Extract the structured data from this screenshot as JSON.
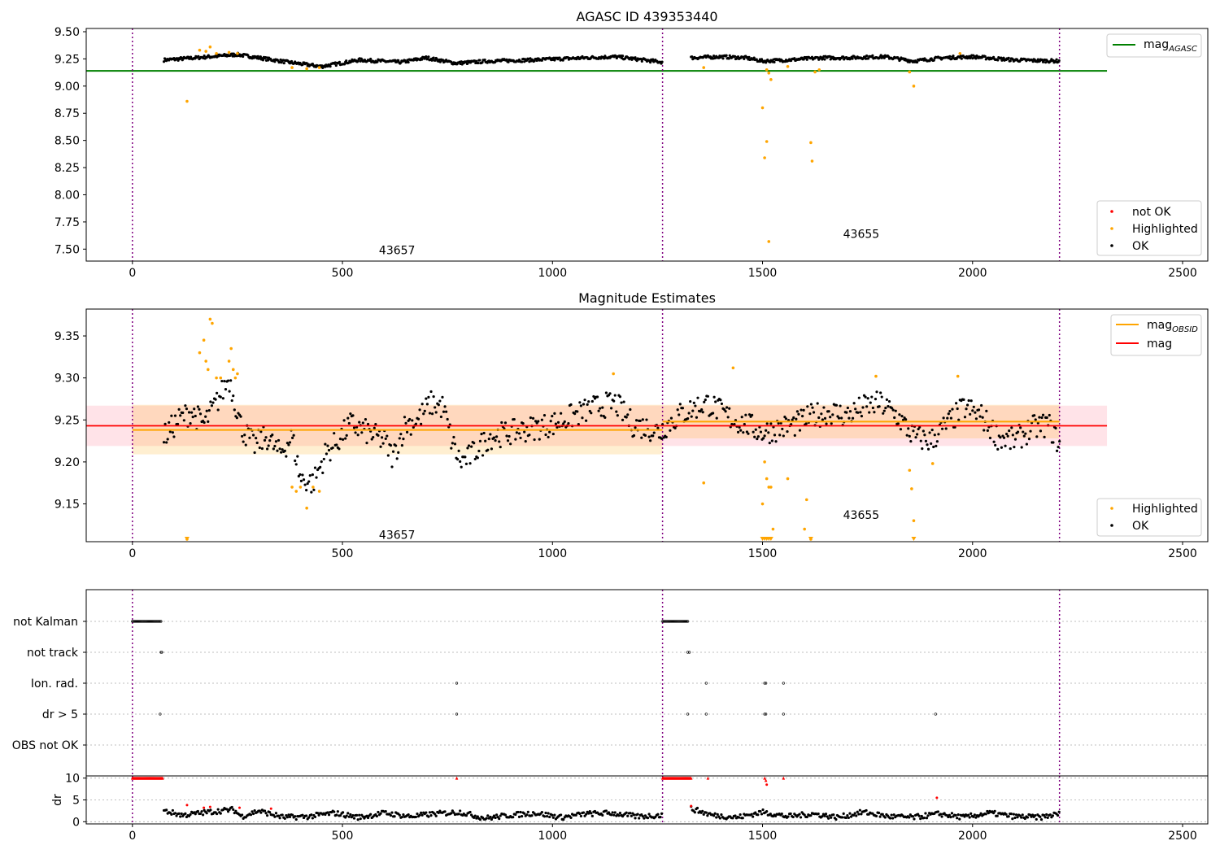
{
  "figure": {
    "xlim": [
      -110,
      2560
    ],
    "xticks": [
      "0",
      "500",
      "1000",
      "1500",
      "2000",
      "2500"
    ],
    "xtick_values": [
      0,
      500,
      1000,
      1500,
      2000,
      2500
    ],
    "obsid_boundaries": [
      0,
      1262,
      2207
    ],
    "colors": {
      "ok": "#000000",
      "highlighted": "#ffa500",
      "not_ok": "#ff0000",
      "agasc_line": "#008000",
      "mag_line": "#ff0000",
      "obsid_line": "#ffa500",
      "boundary": "#800080"
    }
  },
  "chart_data": [
    {
      "type": "scatter",
      "title": "AGASC ID 439353440",
      "xlabel": "",
      "ylabel": "",
      "ylim": [
        7.39,
        9.53
      ],
      "yticks": [
        "7.50",
        "7.75",
        "8.00",
        "8.25",
        "8.50",
        "8.75",
        "9.00",
        "9.25",
        "9.50"
      ],
      "ytick_values": [
        7.5,
        7.75,
        8.0,
        8.25,
        8.5,
        8.75,
        9.0,
        9.25,
        9.5
      ],
      "obsid_labels": [
        {
          "text": "43657",
          "x": 630,
          "y": 7.49
        },
        {
          "text": "43655",
          "x": 1735,
          "y": 7.64
        }
      ],
      "lines": [
        {
          "name": "mag$_{AGASC}$",
          "label_main": "mag",
          "label_sub": "AGASC",
          "y": 9.14,
          "x_range": [
            -110,
            2320
          ],
          "color": "#008000"
        }
      ],
      "legend_lines_position": "upper right",
      "legend_points_position": "lower right",
      "legend_points": [
        "not OK",
        "Highlighted",
        "OK"
      ],
      "series": [
        {
          "name": "OK",
          "segments": [
            {
              "x": [
                75,
                150,
                250,
                370,
                450,
                540,
                640,
                700,
                770,
                850,
                950,
                1080,
                1150,
                1262
              ],
              "y": [
                9.24,
                9.26,
                9.29,
                9.22,
                9.18,
                9.24,
                9.22,
                9.26,
                9.21,
                9.23,
                9.24,
                9.26,
                9.27,
                9.22
              ]
            },
            {
              "x": [
                1330,
                1400,
                1460,
                1500,
                1560,
                1640,
                1700,
                1790,
                1860,
                1930,
                2000,
                2100,
                2207
              ],
              "y": [
                9.26,
                9.27,
                9.26,
                9.23,
                9.24,
                9.26,
                9.26,
                9.27,
                9.23,
                9.26,
                9.27,
                9.24,
                9.23
              ]
            }
          ]
        },
        {
          "name": "Highlighted",
          "x": [
            130,
            160,
            175,
            185,
            200,
            230,
            250,
            380,
            415,
            445,
            1360,
            1500,
            1505,
            1510,
            1515,
            1520,
            1510,
            1560,
            1615,
            1618,
            1625,
            1635,
            1850,
            1860,
            1970
          ],
          "y": [
            8.86,
            9.33,
            9.32,
            9.36,
            9.3,
            9.31,
            9.3,
            9.17,
            9.16,
            9.17,
            9.17,
            8.8,
            8.34,
            9.15,
            9.12,
            9.06,
            8.49,
            9.18,
            8.48,
            8.31,
            9.13,
            9.15,
            9.13,
            9.0,
            9.3
          ]
        },
        {
          "name": "Highlighted-extra",
          "x": [
            1515
          ],
          "y": [
            7.57
          ]
        }
      ]
    },
    {
      "type": "scatter",
      "title": "Magnitude Estimates",
      "xlabel": "",
      "ylabel": "",
      "ylim": [
        9.105,
        9.382
      ],
      "yticks": [
        "9.15",
        "9.20",
        "9.25",
        "9.30",
        "9.35"
      ],
      "ytick_values": [
        9.15,
        9.2,
        9.25,
        9.3,
        9.35
      ],
      "obsid_labels": [
        {
          "text": "43657",
          "x": 630,
          "y": 9.113
        },
        {
          "text": "43655",
          "x": 1735,
          "y": 9.137
        }
      ],
      "lines": [
        {
          "label_main": "mag",
          "label_sub": "OBSID",
          "color": "#ffa500"
        },
        {
          "label_main": "mag",
          "label_sub": "",
          "color": "#ff0000"
        }
      ],
      "mag": {
        "value": 9.243,
        "band": [
          9.219,
          9.267
        ],
        "x_range": [
          -110,
          2320
        ]
      },
      "obsid_mags": [
        {
          "x_range": [
            0,
            1262
          ],
          "value": 9.238,
          "band": [
            9.209,
            9.268
          ]
        },
        {
          "x_range": [
            1262,
            2207
          ],
          "value": 9.248,
          "band": [
            9.228,
            9.268
          ]
        }
      ],
      "legend_points": [
        "Highlighted",
        "OK"
      ],
      "series": [
        {
          "name": "OK",
          "segments": [
            {
              "x": [
                75,
                110,
                140,
                170,
                200,
                230,
                260,
                290,
                320,
                350,
                380,
                400,
                430,
                460,
                480,
                520,
                560,
                600,
                620,
                650,
                680,
                710,
                740,
                760,
                780,
                800,
                850,
                900,
                950,
                1000,
                1050,
                1100,
                1150,
                1190,
                1230,
                1262
              ],
              "y": [
                9.23,
                9.25,
                9.26,
                9.245,
                9.27,
                9.3,
                9.24,
                9.22,
                9.23,
                9.21,
                9.23,
                9.18,
                9.175,
                9.21,
                9.22,
                9.245,
                9.235,
                9.225,
                9.205,
                9.245,
                9.25,
                9.27,
                9.265,
                9.225,
                9.2,
                9.205,
                9.23,
                9.235,
                9.24,
                9.245,
                9.255,
                9.265,
                9.27,
                9.245,
                9.24,
                9.235
              ]
            },
            {
              "x": [
                1262,
                1300,
                1340,
                1370,
                1400,
                1430,
                1460,
                1500,
                1540,
                1580,
                1620,
                1660,
                1700,
                1740,
                1780,
                1820,
                1860,
                1900,
                1940,
                1980,
                2020,
                2060,
                2100,
                2140,
                2180,
                2207
              ],
              "y": [
                9.24,
                9.255,
                9.265,
                9.27,
                9.26,
                9.25,
                9.245,
                9.235,
                9.24,
                9.245,
                9.255,
                9.26,
                9.255,
                9.265,
                9.27,
                9.255,
                9.23,
                9.225,
                9.245,
                9.265,
                9.255,
                9.23,
                9.225,
                9.24,
                9.245,
                9.22
              ]
            }
          ]
        },
        {
          "name": "Highlighted",
          "x": [
            130,
            160,
            170,
            175,
            180,
            185,
            190,
            200,
            210,
            230,
            235,
            240,
            245,
            250,
            380,
            390,
            400,
            415,
            430,
            445,
            1145,
            1360,
            1430,
            1500,
            1505,
            1510,
            1515,
            1520,
            1525,
            1560,
            1600,
            1605,
            1615,
            1770,
            1850,
            1855,
            1860,
            1905,
            1965
          ],
          "y": [
            9.107,
            9.33,
            9.345,
            9.32,
            9.31,
            9.37,
            9.365,
            9.3,
            9.3,
            9.32,
            9.335,
            9.31,
            9.3,
            9.305,
            9.17,
            9.165,
            9.17,
            9.145,
            9.17,
            9.165,
            9.305,
            9.175,
            9.312,
            9.15,
            9.2,
            9.18,
            9.17,
            9.17,
            9.12,
            9.18,
            9.12,
            9.155,
            9.107,
            9.302,
            9.19,
            9.168,
            9.13,
            9.198,
            9.302
          ]
        },
        {
          "name": "Highlighted-floor",
          "x": [
            130,
            1500,
            1505,
            1510,
            1515,
            1520,
            1615,
            1860
          ],
          "y": [
            9.107,
            9.107,
            9.107,
            9.107,
            9.107,
            9.107,
            9.107,
            9.107
          ]
        }
      ]
    },
    {
      "type": "scatter",
      "title": "",
      "xlabel": "",
      "ylabel": "",
      "flag_rows": [
        "not Kalman",
        "not track",
        "Ion. rad.",
        "dr > 5",
        "OBS not OK"
      ],
      "flags": [
        {
          "row": "not Kalman",
          "segments": [
            [
              0,
              68
            ],
            [
              1262,
              1322
            ]
          ]
        },
        {
          "row": "not track",
          "points": [
            68,
            70,
            1322,
            1326
          ]
        },
        {
          "row": "Ion. rad.",
          "points": [
            772,
            1366,
            1505,
            1508,
            1550
          ]
        },
        {
          "row": "dr > 5",
          "points": [
            66,
            772,
            1322,
            1366,
            1505,
            1508,
            1550,
            1912
          ]
        },
        {
          "row": "OBS not OK",
          "points": []
        }
      ],
      "dr": {
        "ylabel": "dr",
        "ylim": [
          -0.5,
          10.5
        ],
        "yticks": [
          "0",
          "5",
          "10"
        ],
        "ytick_values": [
          0,
          5,
          10
        ],
        "capped_red": [
          [
            0,
            72
          ],
          [
            1262,
            1330
          ]
        ],
        "red_points_x": [
          772,
          1370,
          1505,
          1508,
          1550
        ],
        "red_points_y": [
          10,
          10,
          10,
          9.5,
          10
        ],
        "red_extra_x": [
          130,
          170,
          185,
          255,
          330,
          1330,
          1510,
          1915
        ],
        "red_extra_y": [
          3.8,
          3.2,
          3.4,
          3.2,
          3.0,
          3.6,
          8.5,
          5.5
        ],
        "ok_segments": [
          {
            "x": [
              75,
              120,
              180,
              240,
              260,
              300,
              360,
              420,
              480,
              540,
              600,
              660,
              720,
              780,
              840,
              900,
              960,
              1020,
              1080,
              1140,
              1200,
              1262
            ],
            "y": [
              2.5,
              1.5,
              2.2,
              2.8,
              1.2,
              2.5,
              1.0,
              1.2,
              2.0,
              1.0,
              2.0,
              1.2,
              1.8,
              2.2,
              0.8,
              1.5,
              2.0,
              1.0,
              1.8,
              2.0,
              1.2,
              1.5
            ]
          },
          {
            "x": [
              1330,
              1380,
              1440,
              1500,
              1560,
              1620,
              1680,
              1740,
              1800,
              1860,
              1920,
              1980,
              2040,
              2100,
              2160,
              2207
            ],
            "y": [
              3.0,
              1.5,
              1.0,
              2.2,
              1.2,
              1.8,
              1.0,
              2.2,
              1.2,
              1.0,
              1.8,
              1.0,
              2.0,
              1.2,
              1.0,
              1.8
            ]
          }
        ]
      }
    }
  ]
}
